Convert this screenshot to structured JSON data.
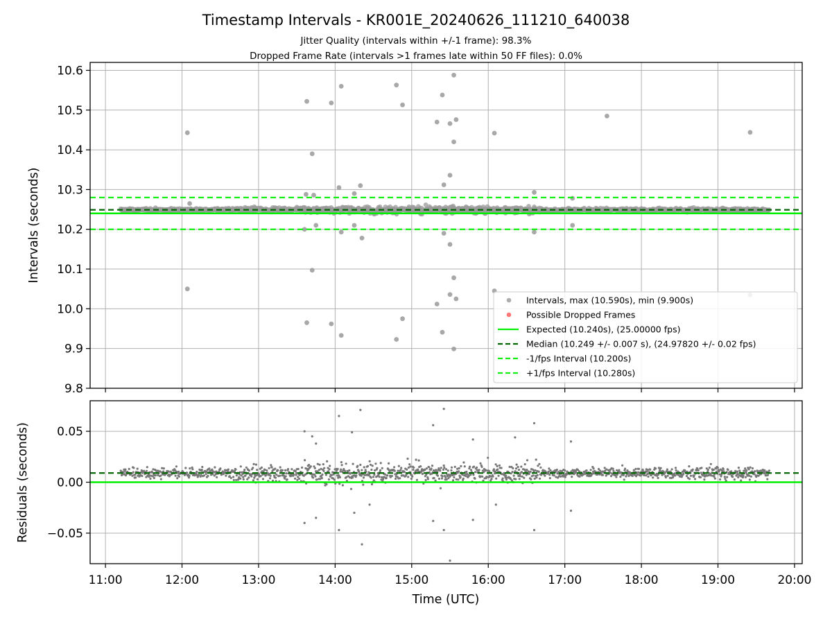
{
  "figure": {
    "title": "Timestamp Intervals - KR001E_20240626_111210_640038",
    "subtitle_1": "Jitter Quality (intervals within +/-1 frame): 98.3%",
    "subtitle_2": "Dropped Frame Rate (intervals >1 frames late within 50 FF files): 0.0%",
    "xlabel": "Time (UTC)"
  },
  "colors": {
    "points": "#999999",
    "residual_points": "#777777",
    "dropped": "#ff5555",
    "expected": "#00ee00",
    "median": "#006400",
    "bounds": "#11ee11",
    "grid": "#b0b0b0"
  },
  "chart_data": [
    {
      "type": "scatter",
      "ylabel": "Intervals (seconds)",
      "xlim_hours": [
        10.8,
        20.1
      ],
      "ylim": [
        9.8,
        10.62
      ],
      "x_ticks": [
        {
          "h": 11,
          "label": "11:00"
        },
        {
          "h": 12,
          "label": "12:00"
        },
        {
          "h": 13,
          "label": "13:00"
        },
        {
          "h": 14,
          "label": "14:00"
        },
        {
          "h": 15,
          "label": "15:00"
        },
        {
          "h": 16,
          "label": "16:00"
        },
        {
          "h": 17,
          "label": "17:00"
        },
        {
          "h": 18,
          "label": "18:00"
        },
        {
          "h": 19,
          "label": "19:00"
        },
        {
          "h": 20,
          "label": "20:00"
        }
      ],
      "y_ticks": [
        {
          "v": 9.8,
          "label": "9.8"
        },
        {
          "v": 9.9,
          "label": "9.9"
        },
        {
          "v": 10.0,
          "label": "10.0"
        },
        {
          "v": 10.1,
          "label": "10.1"
        },
        {
          "v": 10.2,
          "label": "10.2"
        },
        {
          "v": 10.3,
          "label": "10.3"
        },
        {
          "v": 10.4,
          "label": "10.4"
        },
        {
          "v": 10.5,
          "label": "10.5"
        },
        {
          "v": 10.6,
          "label": "10.6"
        }
      ],
      "grid": true,
      "data_range_hours": [
        11.2,
        19.67
      ],
      "central_value": 10.249,
      "outliers": [
        [
          12.07,
          10.443
        ],
        [
          12.07,
          10.05
        ],
        [
          13.63,
          10.522
        ],
        [
          13.63,
          9.965
        ],
        [
          13.7,
          10.39
        ],
        [
          13.7,
          10.097
        ],
        [
          13.95,
          10.518
        ],
        [
          13.95,
          9.962
        ],
        [
          14.08,
          10.56
        ],
        [
          14.08,
          9.933
        ],
        [
          14.05,
          10.305
        ],
        [
          14.08,
          10.193
        ],
        [
          14.33,
          10.31
        ],
        [
          14.35,
          10.178
        ],
        [
          14.8,
          10.563
        ],
        [
          14.8,
          9.923
        ],
        [
          14.88,
          10.513
        ],
        [
          14.88,
          9.975
        ],
        [
          15.33,
          10.47
        ],
        [
          15.33,
          10.012
        ],
        [
          15.4,
          10.538
        ],
        [
          15.4,
          9.941
        ],
        [
          15.5,
          10.466
        ],
        [
          15.5,
          10.036
        ],
        [
          15.55,
          10.588
        ],
        [
          15.55,
          9.899
        ],
        [
          15.55,
          10.42
        ],
        [
          15.55,
          10.078
        ],
        [
          15.58,
          10.476
        ],
        [
          15.58,
          10.025
        ],
        [
          15.5,
          10.336
        ],
        [
          15.5,
          10.162
        ],
        [
          15.42,
          10.312
        ],
        [
          15.42,
          10.19
        ],
        [
          16.08,
          10.442
        ],
        [
          16.08,
          10.045
        ],
        [
          17.55,
          10.485
        ],
        [
          19.42,
          10.444
        ],
        [
          19.42,
          10.035
        ],
        [
          13.62,
          10.288
        ],
        [
          13.72,
          10.286
        ],
        [
          13.6,
          10.2
        ],
        [
          16.6,
          10.293
        ],
        [
          16.6,
          10.193
        ],
        [
          17.1,
          10.278
        ],
        [
          17.1,
          10.21
        ],
        [
          12.1,
          10.265
        ],
        [
          13.75,
          10.21
        ],
        [
          14.25,
          10.29
        ],
        [
          14.25,
          10.21
        ]
      ],
      "lines": {
        "expected": 10.24,
        "median": 10.249,
        "minus_bound": 10.2,
        "plus_bound": 10.28
      },
      "legend": {
        "position": "lower right",
        "entries": [
          {
            "kind": "marker",
            "color_key": "points",
            "label": "Intervals, max (10.590s), min (9.900s)"
          },
          {
            "kind": "marker",
            "color_key": "dropped",
            "label": "Possible Dropped Frames"
          },
          {
            "kind": "solid",
            "color_key": "expected",
            "label": "Expected (10.240s), (25.00000 fps)"
          },
          {
            "kind": "dashed",
            "color_key": "median",
            "label": "Median (10.249 +/- 0.007 s), (24.97820 +/- 0.02 fps)"
          },
          {
            "kind": "dashed",
            "color_key": "bounds",
            "label": "-1/fps Interval (10.200s)"
          },
          {
            "kind": "dashed",
            "color_key": "bounds",
            "label": "+1/fps Interval (10.280s)"
          }
        ]
      }
    },
    {
      "type": "scatter",
      "ylabel": "Residuals (seconds)",
      "xlim_hours": [
        10.8,
        20.1
      ],
      "ylim": [
        -0.08,
        0.08
      ],
      "y_ticks": [
        {
          "v": -0.05,
          "label": "−0.05"
        },
        {
          "v": 0.0,
          "label": "0.00"
        },
        {
          "v": 0.05,
          "label": "0.05"
        }
      ],
      "grid": true,
      "lines": {
        "zero": 0.0,
        "median": 0.009
      },
      "outliers": [
        [
          13.6,
          0.05
        ],
        [
          13.7,
          0.045
        ],
        [
          13.75,
          0.038
        ],
        [
          13.6,
          -0.04
        ],
        [
          13.75,
          -0.035
        ],
        [
          14.05,
          0.065
        ],
        [
          14.05,
          -0.047
        ],
        [
          14.22,
          0.049
        ],
        [
          14.25,
          -0.03
        ],
        [
          14.33,
          0.071
        ],
        [
          14.35,
          -0.061
        ],
        [
          15.28,
          0.056
        ],
        [
          15.28,
          -0.038
        ],
        [
          15.42,
          0.072
        ],
        [
          15.42,
          -0.047
        ],
        [
          15.5,
          -0.077
        ],
        [
          15.8,
          0.042
        ],
        [
          15.8,
          -0.037
        ],
        [
          16.35,
          0.044
        ],
        [
          16.6,
          0.058
        ],
        [
          16.6,
          -0.047
        ],
        [
          17.08,
          0.04
        ],
        [
          17.08,
          -0.028
        ],
        [
          16.1,
          -0.022
        ],
        [
          14.45,
          -0.022
        ]
      ]
    }
  ]
}
